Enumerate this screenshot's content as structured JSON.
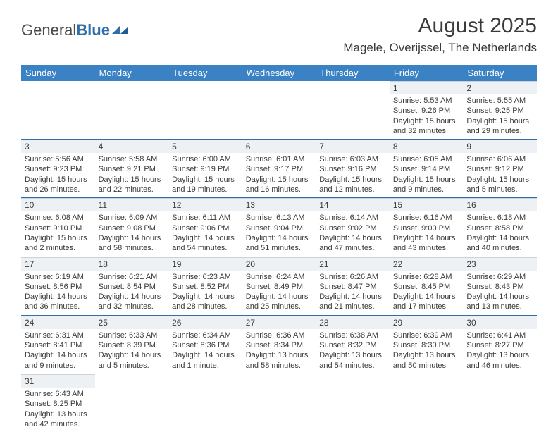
{
  "logo": {
    "text1": "General",
    "text2": "Blue"
  },
  "title": "August 2025",
  "location": "Magele, Overijssel, The Netherlands",
  "colors": {
    "header_bg": "#3b82c4",
    "header_text": "#ffffff",
    "daynum_bg": "#eef1f3",
    "row_border": "#2f6ea8",
    "text": "#3a3a3a"
  },
  "day_headers": [
    "Sunday",
    "Monday",
    "Tuesday",
    "Wednesday",
    "Thursday",
    "Friday",
    "Saturday"
  ],
  "weeks": [
    [
      null,
      null,
      null,
      null,
      null,
      {
        "n": "1",
        "sr": "5:53 AM",
        "ss": "9:26 PM",
        "dl": "15 hours and 32 minutes."
      },
      {
        "n": "2",
        "sr": "5:55 AM",
        "ss": "9:25 PM",
        "dl": "15 hours and 29 minutes."
      }
    ],
    [
      {
        "n": "3",
        "sr": "5:56 AM",
        "ss": "9:23 PM",
        "dl": "15 hours and 26 minutes."
      },
      {
        "n": "4",
        "sr": "5:58 AM",
        "ss": "9:21 PM",
        "dl": "15 hours and 22 minutes."
      },
      {
        "n": "5",
        "sr": "6:00 AM",
        "ss": "9:19 PM",
        "dl": "15 hours and 19 minutes."
      },
      {
        "n": "6",
        "sr": "6:01 AM",
        "ss": "9:17 PM",
        "dl": "15 hours and 16 minutes."
      },
      {
        "n": "7",
        "sr": "6:03 AM",
        "ss": "9:16 PM",
        "dl": "15 hours and 12 minutes."
      },
      {
        "n": "8",
        "sr": "6:05 AM",
        "ss": "9:14 PM",
        "dl": "15 hours and 9 minutes."
      },
      {
        "n": "9",
        "sr": "6:06 AM",
        "ss": "9:12 PM",
        "dl": "15 hours and 5 minutes."
      }
    ],
    [
      {
        "n": "10",
        "sr": "6:08 AM",
        "ss": "9:10 PM",
        "dl": "15 hours and 2 minutes."
      },
      {
        "n": "11",
        "sr": "6:09 AM",
        "ss": "9:08 PM",
        "dl": "14 hours and 58 minutes."
      },
      {
        "n": "12",
        "sr": "6:11 AM",
        "ss": "9:06 PM",
        "dl": "14 hours and 54 minutes."
      },
      {
        "n": "13",
        "sr": "6:13 AM",
        "ss": "9:04 PM",
        "dl": "14 hours and 51 minutes."
      },
      {
        "n": "14",
        "sr": "6:14 AM",
        "ss": "9:02 PM",
        "dl": "14 hours and 47 minutes."
      },
      {
        "n": "15",
        "sr": "6:16 AM",
        "ss": "9:00 PM",
        "dl": "14 hours and 43 minutes."
      },
      {
        "n": "16",
        "sr": "6:18 AM",
        "ss": "8:58 PM",
        "dl": "14 hours and 40 minutes."
      }
    ],
    [
      {
        "n": "17",
        "sr": "6:19 AM",
        "ss": "8:56 PM",
        "dl": "14 hours and 36 minutes."
      },
      {
        "n": "18",
        "sr": "6:21 AM",
        "ss": "8:54 PM",
        "dl": "14 hours and 32 minutes."
      },
      {
        "n": "19",
        "sr": "6:23 AM",
        "ss": "8:52 PM",
        "dl": "14 hours and 28 minutes."
      },
      {
        "n": "20",
        "sr": "6:24 AM",
        "ss": "8:49 PM",
        "dl": "14 hours and 25 minutes."
      },
      {
        "n": "21",
        "sr": "6:26 AM",
        "ss": "8:47 PM",
        "dl": "14 hours and 21 minutes."
      },
      {
        "n": "22",
        "sr": "6:28 AM",
        "ss": "8:45 PM",
        "dl": "14 hours and 17 minutes."
      },
      {
        "n": "23",
        "sr": "6:29 AM",
        "ss": "8:43 PM",
        "dl": "14 hours and 13 minutes."
      }
    ],
    [
      {
        "n": "24",
        "sr": "6:31 AM",
        "ss": "8:41 PM",
        "dl": "14 hours and 9 minutes."
      },
      {
        "n": "25",
        "sr": "6:33 AM",
        "ss": "8:39 PM",
        "dl": "14 hours and 5 minutes."
      },
      {
        "n": "26",
        "sr": "6:34 AM",
        "ss": "8:36 PM",
        "dl": "14 hours and 1 minute."
      },
      {
        "n": "27",
        "sr": "6:36 AM",
        "ss": "8:34 PM",
        "dl": "13 hours and 58 minutes."
      },
      {
        "n": "28",
        "sr": "6:38 AM",
        "ss": "8:32 PM",
        "dl": "13 hours and 54 minutes."
      },
      {
        "n": "29",
        "sr": "6:39 AM",
        "ss": "8:30 PM",
        "dl": "13 hours and 50 minutes."
      },
      {
        "n": "30",
        "sr": "6:41 AM",
        "ss": "8:27 PM",
        "dl": "13 hours and 46 minutes."
      }
    ],
    [
      {
        "n": "31",
        "sr": "6:43 AM",
        "ss": "8:25 PM",
        "dl": "13 hours and 42 minutes."
      },
      null,
      null,
      null,
      null,
      null,
      null
    ]
  ],
  "labels": {
    "sunrise": "Sunrise:",
    "sunset": "Sunset:",
    "daylight": "Daylight:"
  }
}
